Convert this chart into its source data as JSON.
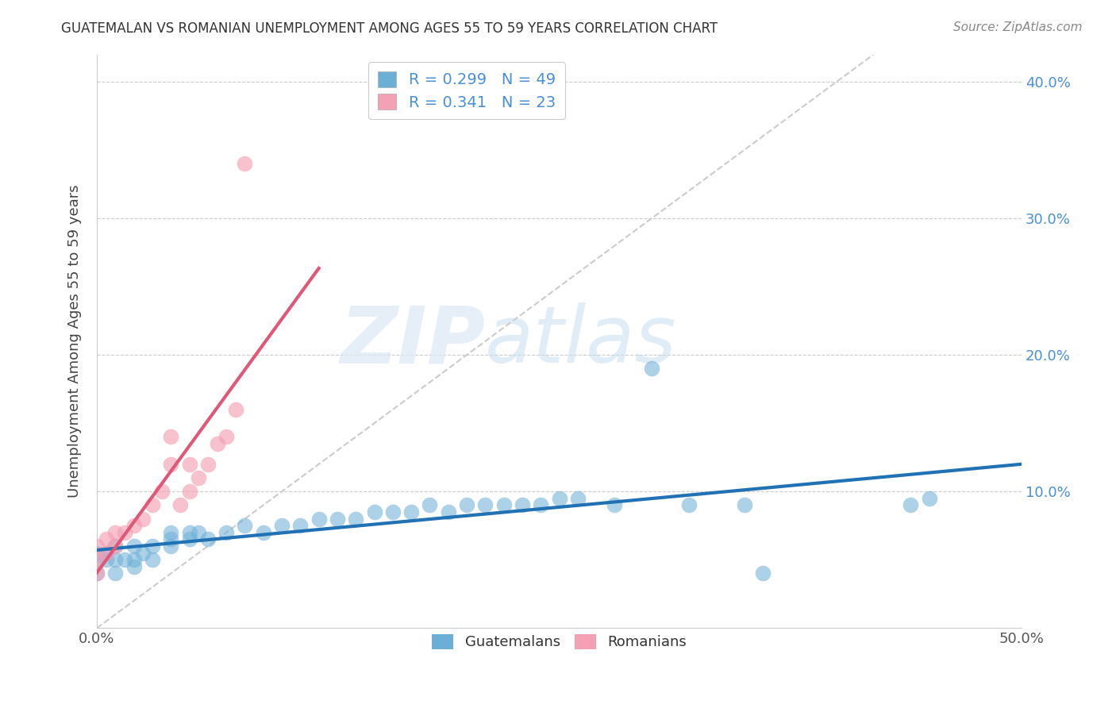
{
  "title": "GUATEMALAN VS ROMANIAN UNEMPLOYMENT AMONG AGES 55 TO 59 YEARS CORRELATION CHART",
  "source": "Source: ZipAtlas.com",
  "ylabel": "Unemployment Among Ages 55 to 59 years",
  "xlim": [
    0.0,
    0.5
  ],
  "ylim": [
    0.0,
    0.42
  ],
  "xticks": [
    0.0,
    0.1,
    0.2,
    0.3,
    0.4,
    0.5
  ],
  "xtick_labels": [
    "0.0%",
    "",
    "",
    "",
    "",
    "50.0%"
  ],
  "yticks": [
    0.0,
    0.1,
    0.2,
    0.3,
    0.4
  ],
  "ytick_labels_right": [
    "",
    "10.0%",
    "20.0%",
    "30.0%",
    "40.0%"
  ],
  "watermark_zip": "ZIP",
  "watermark_atlas": "atlas",
  "blue_color": "#6baed6",
  "pink_color": "#f4a0b5",
  "blue_line_color": "#2171b5",
  "pink_line_color": "#e05878",
  "diagonal_color": "#cccccc",
  "legend_blue_R": "0.299",
  "legend_blue_N": "49",
  "legend_pink_R": "0.341",
  "legend_pink_N": "23",
  "guatemalan_x": [
    0.0,
    0.0,
    0.0,
    0.005,
    0.005,
    0.01,
    0.01,
    0.01,
    0.015,
    0.02,
    0.02,
    0.02,
    0.025,
    0.03,
    0.03,
    0.04,
    0.04,
    0.04,
    0.05,
    0.05,
    0.055,
    0.06,
    0.07,
    0.08,
    0.09,
    0.1,
    0.11,
    0.12,
    0.13,
    0.14,
    0.15,
    0.16,
    0.17,
    0.18,
    0.19,
    0.2,
    0.21,
    0.22,
    0.23,
    0.24,
    0.25,
    0.26,
    0.28,
    0.3,
    0.32,
    0.35,
    0.36,
    0.44,
    0.45
  ],
  "guatemalan_y": [
    0.04,
    0.05,
    0.055,
    0.05,
    0.055,
    0.04,
    0.05,
    0.06,
    0.05,
    0.045,
    0.05,
    0.06,
    0.055,
    0.05,
    0.06,
    0.06,
    0.065,
    0.07,
    0.065,
    0.07,
    0.07,
    0.065,
    0.07,
    0.075,
    0.07,
    0.075,
    0.075,
    0.08,
    0.08,
    0.08,
    0.085,
    0.085,
    0.085,
    0.09,
    0.085,
    0.09,
    0.09,
    0.09,
    0.09,
    0.09,
    0.095,
    0.095,
    0.09,
    0.19,
    0.09,
    0.09,
    0.04,
    0.09,
    0.095
  ],
  "romanian_x": [
    0.0,
    0.0,
    0.0,
    0.005,
    0.005,
    0.01,
    0.01,
    0.015,
    0.02,
    0.025,
    0.03,
    0.035,
    0.04,
    0.04,
    0.045,
    0.05,
    0.05,
    0.055,
    0.06,
    0.065,
    0.07,
    0.075,
    0.08
  ],
  "romanian_y": [
    0.04,
    0.05,
    0.06,
    0.055,
    0.065,
    0.06,
    0.07,
    0.07,
    0.075,
    0.08,
    0.09,
    0.1,
    0.12,
    0.14,
    0.09,
    0.1,
    0.12,
    0.11,
    0.12,
    0.135,
    0.14,
    0.16,
    0.34
  ]
}
